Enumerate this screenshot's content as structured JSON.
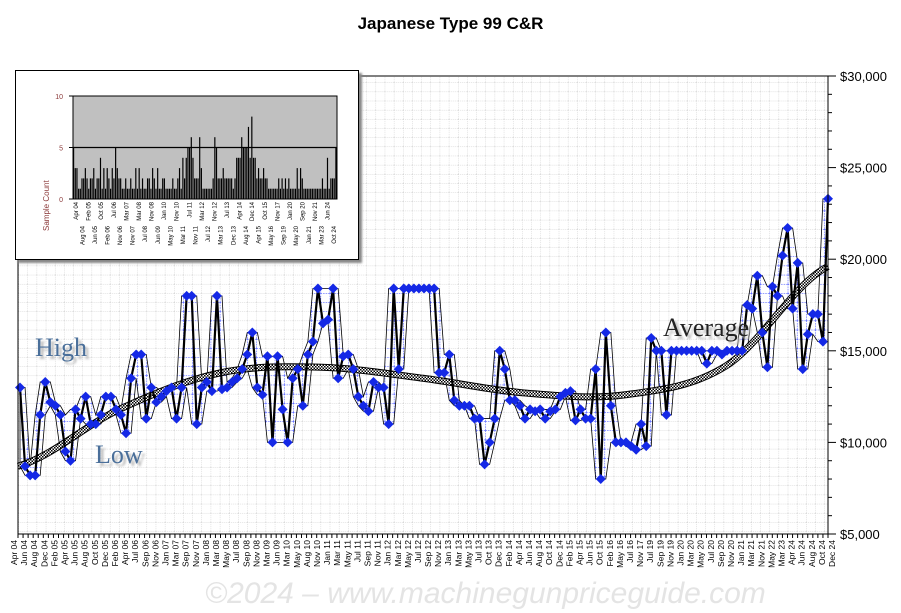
{
  "chart_data": {
    "type": "line",
    "title": "Japanese Type 99 C&R",
    "ylim": [
      5000,
      30000
    ],
    "yticks": [
      "$5,000",
      "$10,000",
      "$15,000",
      "$20,000",
      "$25,000",
      "$30,000"
    ],
    "ytick_values": [
      5000,
      10000,
      15000,
      20000,
      25000,
      30000
    ],
    "grid": true,
    "annotations": {
      "high": "High",
      "low": "Low",
      "average": "Average"
    },
    "watermark": "©2024 – www.machinegunpriceguide.com",
    "x_labels": [
      "Apr 04",
      "Jun 04",
      "Aug 04",
      "Dec 04",
      "Feb 05",
      "Apr 05",
      "Jun 05",
      "Aug 05",
      "Oct 05",
      "Dec 05",
      "Feb 06",
      "Apr 06",
      "Jul 06",
      "Sep 06",
      "Nov 06",
      "Jan 07",
      "Mar 07",
      "Sep 07",
      "Nov 07",
      "Jan 08",
      "Mar 08",
      "May 08",
      "Jul 08",
      "Sep 08",
      "Nov 08",
      "Mar 09",
      "Jun 09",
      "Mar 10",
      "May 10",
      "Aug 10",
      "Nov 10",
      "Jan 11",
      "Mar 11",
      "May 11",
      "Jul 11",
      "Sep 11",
      "Nov 11",
      "Jan 12",
      "Mar 12",
      "May 12",
      "Jul 12",
      "Sep 12",
      "Nov 12",
      "Jan 13",
      "Mar 13",
      "May 13",
      "Jul 13",
      "Oct 13",
      "Dec 13",
      "Feb 14",
      "Apr 14",
      "Jun 14",
      "Aug 14",
      "Oct 14",
      "Dec 14",
      "Feb 15",
      "Apr 15",
      "Jun 15",
      "Oct 15",
      "Feb 16",
      "May 16",
      "Jul 16",
      "Nov 17",
      "Jul 19",
      "Sep 19",
      "Nov 19",
      "Jan 20",
      "Mar 20",
      "May 20",
      "Jul 20",
      "Sep 20",
      "Nov 20",
      "Jan 21",
      "Mar 21",
      "Nov 21",
      "May 22",
      "Mar 23",
      "Apr 24",
      "Jun 24",
      "Aug 24",
      "Oct 24",
      "Dec 24"
    ],
    "series": [
      {
        "name": "Price",
        "values": [
          13000,
          8700,
          8200,
          8200,
          11500,
          13300,
          12200,
          12000,
          11500,
          9500,
          9000,
          11800,
          11300,
          12500,
          11000,
          11000,
          11500,
          12500,
          12500,
          11800,
          11500,
          10500,
          13500,
          14800,
          14800,
          11300,
          13000,
          12200,
          12500,
          12800,
          13000,
          11300,
          13000,
          18000,
          18000,
          11000,
          13000,
          13300,
          12800,
          18000,
          12900,
          13000,
          13300,
          13500,
          14000,
          14800,
          16000,
          13000,
          12600,
          14700,
          10000,
          14700,
          11800,
          10000,
          13500,
          14000,
          12000,
          14800,
          15500,
          18400,
          16500,
          16700,
          18400,
          13500,
          14700,
          14800,
          14000,
          12500,
          12000,
          11700,
          13300,
          13000,
          13000,
          11000,
          18400,
          14000,
          18400,
          18400,
          18400,
          18400,
          18400,
          18400,
          18400,
          13800,
          13800,
          14800,
          12300,
          12000,
          12000,
          12000,
          11300,
          11300,
          8800,
          10000,
          11300,
          15000,
          14000,
          12300,
          12300,
          12000,
          11300,
          11800,
          11700,
          11800,
          11300,
          11700,
          11800,
          12500,
          12700,
          12800,
          11200,
          11800,
          11300,
          11300,
          14000,
          8000,
          16000,
          12000,
          10000,
          10000,
          10000,
          9800,
          9600,
          11000,
          9800,
          15700,
          15000,
          15000,
          11500,
          15000,
          15000,
          15000,
          15000,
          15000,
          15000,
          15000,
          14300,
          15000,
          15000,
          14800,
          15000,
          15000,
          15000,
          15000,
          17500,
          17300,
          19100,
          16000,
          14100,
          18500,
          18000,
          20200,
          21700,
          17300,
          19800,
          14000,
          15900,
          17000,
          17000,
          15500,
          23300
        ]
      },
      {
        "name": "Average",
        "values": [
          8700,
          11800,
          13800,
          14100,
          13500,
          12700,
          12600,
          14200,
          19600
        ]
      }
    ]
  },
  "inset": {
    "ylabel": "Sample Count",
    "yticks": [
      "0",
      "5",
      "10"
    ],
    "ylim": [
      0,
      10
    ],
    "x_labels": [
      "Apr 04",
      "Aug 04",
      "Feb 05",
      "Jun 05",
      "Oct 05",
      "Feb 06",
      "Jul 06",
      "Nov 06",
      "Mar 07",
      "Nov 07",
      "Mar 08",
      "Jul 08",
      "Nov 08",
      "Jun 09",
      "Jan 10",
      "May 10",
      "Nov 10",
      "Mar 11",
      "Jul 11",
      "Nov 11",
      "Mar 12",
      "Jul 12",
      "Nov 12",
      "Mar 13",
      "Jul 13",
      "Dec 13",
      "Apr 14",
      "Aug 14",
      "Dec 14",
      "Apr 15",
      "Oct 15",
      "May 16",
      "Nov 17",
      "Sep 19",
      "Jan 20",
      "May 20",
      "Sep 20",
      "Jan 21",
      "Nov 21",
      "Mar 23",
      "Jun 24",
      "Oct 24"
    ],
    "counts": [
      5,
      3,
      3,
      1,
      1,
      2,
      2,
      3,
      2,
      1,
      2,
      2,
      3,
      1,
      2,
      2,
      4,
      1,
      3,
      1,
      3,
      2,
      1,
      3,
      2,
      5,
      3,
      2,
      2,
      1,
      1,
      2,
      1,
      1,
      2,
      1,
      1,
      3,
      1,
      3,
      1,
      2,
      1,
      1,
      2,
      2,
      1,
      3,
      2,
      1,
      3,
      1,
      1,
      2,
      2,
      1,
      1,
      1,
      1,
      2,
      1,
      1,
      2,
      3,
      1,
      4,
      2,
      4,
      5,
      5,
      6,
      4,
      2,
      2,
      2,
      6,
      3,
      1,
      1,
      1,
      1,
      1,
      1,
      2,
      6,
      5,
      2,
      2,
      2,
      3,
      2,
      2,
      2,
      2,
      2,
      1,
      2,
      4,
      4,
      4,
      6,
      5,
      5,
      5,
      7,
      4,
      8,
      4,
      4,
      2,
      3,
      2,
      2,
      3,
      2,
      2,
      1,
      1,
      1,
      1,
      1,
      1,
      2,
      1,
      2,
      1,
      2,
      1,
      2,
      1,
      1,
      1,
      1,
      3,
      1,
      3,
      2,
      1,
      1,
      1,
      1,
      1,
      1,
      1,
      1,
      1,
      1,
      1,
      2,
      1,
      1,
      4,
      1,
      2,
      2,
      2,
      5
    ]
  },
  "colors": {
    "marker": "#1428e6",
    "band": "#1a2cff",
    "line": "#000000",
    "inset_bg": "#c0c0c0"
  }
}
